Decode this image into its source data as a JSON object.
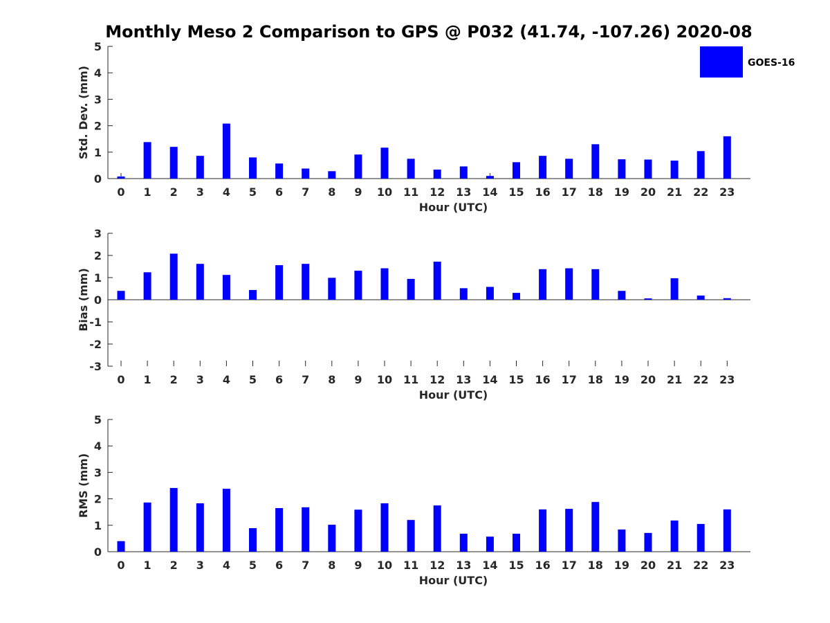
{
  "chart_data": {
    "title": "Monthly Meso 2 Comparison to GPS @ P032 (41.74, -107.26) 2020-08",
    "legend": {
      "label": "GOES-16",
      "placement": "top-right"
    },
    "bar_color": "#0000ff",
    "panels": [
      {
        "type": "bar",
        "xlabel": "Hour (UTC)",
        "ylabel": "Std. Dev. (mm)",
        "ylim": [
          0,
          5
        ],
        "yticks": [
          0,
          1,
          2,
          3,
          4,
          5
        ],
        "categories": [
          "0",
          "1",
          "2",
          "3",
          "4",
          "5",
          "6",
          "7",
          "8",
          "9",
          "10",
          "11",
          "12",
          "13",
          "14",
          "15",
          "16",
          "17",
          "18",
          "19",
          "20",
          "21",
          "22",
          "23"
        ],
        "series": [
          {
            "name": "GOES-16",
            "values": [
              0.08,
              1.38,
              1.2,
              0.86,
              2.08,
              0.8,
              0.57,
              0.38,
              0.28,
              0.91,
              1.17,
              0.75,
              0.34,
              0.46,
              0.1,
              0.62,
              0.86,
              0.75,
              1.3,
              0.73,
              0.72,
              0.68,
              1.04,
              1.6
            ]
          }
        ]
      },
      {
        "type": "bar",
        "xlabel": "Hour (UTC)",
        "ylabel": "Bias (mm)",
        "ylim": [
          -3,
          3
        ],
        "yticks": [
          -3,
          -2,
          -1,
          0,
          1,
          2,
          3
        ],
        "categories": [
          "0",
          "1",
          "2",
          "3",
          "4",
          "5",
          "6",
          "7",
          "8",
          "9",
          "10",
          "11",
          "12",
          "13",
          "14",
          "15",
          "16",
          "17",
          "18",
          "19",
          "20",
          "21",
          "22",
          "23"
        ],
        "series": [
          {
            "name": "GOES-16",
            "values": [
              0.4,
              1.24,
              2.08,
              1.62,
              1.12,
              0.44,
              1.56,
              1.62,
              0.99,
              1.31,
              1.42,
              0.94,
              1.72,
              0.52,
              0.58,
              0.31,
              1.38,
              1.42,
              1.38,
              0.4,
              0.06,
              0.97,
              0.19,
              0.07
            ]
          }
        ]
      },
      {
        "type": "bar",
        "xlabel": "Hour (UTC)",
        "ylabel": "RMS (mm)",
        "ylim": [
          0,
          5
        ],
        "yticks": [
          0,
          1,
          2,
          3,
          4,
          5
        ],
        "categories": [
          "0",
          "1",
          "2",
          "3",
          "4",
          "5",
          "6",
          "7",
          "8",
          "9",
          "10",
          "11",
          "12",
          "13",
          "14",
          "15",
          "16",
          "17",
          "18",
          "19",
          "20",
          "21",
          "22",
          "23"
        ],
        "series": [
          {
            "name": "GOES-16",
            "values": [
              0.4,
              1.86,
              2.41,
              1.83,
              2.38,
              0.89,
              1.65,
              1.68,
              1.02,
              1.59,
              1.83,
              1.2,
              1.75,
              0.68,
              0.57,
              0.68,
              1.6,
              1.62,
              1.88,
              0.84,
              0.71,
              1.18,
              1.05,
              1.6
            ]
          }
        ]
      }
    ]
  }
}
